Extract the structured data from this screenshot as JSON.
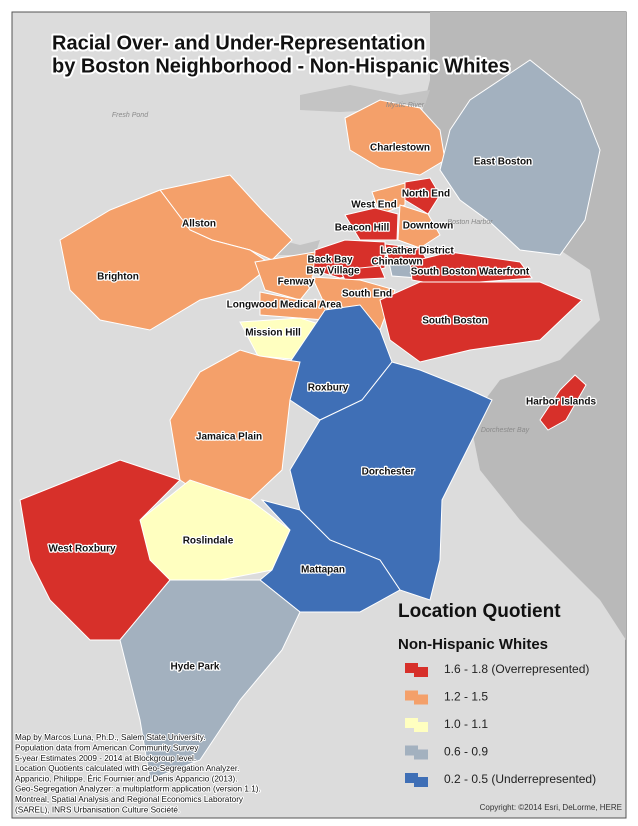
{
  "title": [
    "Racial Over- and Under-Representation",
    "by Boston Neighborhood - Non-Hispanic Whites"
  ],
  "neighborhoods": [
    {
      "name": "Charlestown",
      "color": "#f4a06a"
    },
    {
      "name": "East Boston",
      "color": "#a3b1bf"
    },
    {
      "name": "North End",
      "color": "#d7302a"
    },
    {
      "name": "West End",
      "color": "#f4a06a"
    },
    {
      "name": "Downtown",
      "color": "#f4a06a"
    },
    {
      "name": "Beacon Hill",
      "color": "#d7302a"
    },
    {
      "name": "Back Bay",
      "color": "#d7302a"
    },
    {
      "name": "Bay Village",
      "color": "#d7302a"
    },
    {
      "name": "Leather District",
      "color": "#d7302a"
    },
    {
      "name": "Chinatown",
      "color": "#a3b1bf"
    },
    {
      "name": "South Boston Waterfront",
      "color": "#d7302a"
    },
    {
      "name": "Allston",
      "color": "#f4a06a"
    },
    {
      "name": "Brighton",
      "color": "#f4a06a"
    },
    {
      "name": "Fenway",
      "color": "#f4a06a"
    },
    {
      "name": "Longwood Medical Area",
      "color": "#f4a06a"
    },
    {
      "name": "South End",
      "color": "#f4a06a"
    },
    {
      "name": "South Boston",
      "color": "#d7302a"
    },
    {
      "name": "Mission Hill",
      "color": "#ffffc0"
    },
    {
      "name": "Roxbury",
      "color": "#3f6fb6"
    },
    {
      "name": "Harbor Islands",
      "color": "#d7302a"
    },
    {
      "name": "Jamaica Plain",
      "color": "#f4a06a"
    },
    {
      "name": "Dorchester",
      "color": "#3f6fb6"
    },
    {
      "name": "Roslindale",
      "color": "#ffffc0"
    },
    {
      "name": "West Roxbury",
      "color": "#d7302a"
    },
    {
      "name": "Mattapan",
      "color": "#3f6fb6"
    },
    {
      "name": "Hyde Park",
      "color": "#a3b1bf"
    }
  ],
  "basemap_labels": [
    "Mystic River",
    "Fresh Pond",
    "Boston Harbor",
    "Dorchester Bay"
  ],
  "legend": {
    "title": "Location Quotient",
    "subtitle": "Non-Hispanic Whites",
    "items": [
      {
        "label": "1.6 - 1.8 (Overrepresented)",
        "color": "#d7302a"
      },
      {
        "label": "1.2 - 1.5",
        "color": "#f4a06a"
      },
      {
        "label": "1.0 - 1.1",
        "color": "#ffffc0"
      },
      {
        "label": "0.6 - 0.9",
        "color": "#a3b1bf"
      },
      {
        "label": "0.2 - 0.5 (Underrepresented)",
        "color": "#3f6fb6"
      }
    ]
  },
  "credits": [
    "Map by Marcos Luna, Ph.D., Salem State University.",
    "Population data from American Community Survey",
    "5-year Estimates 2009 - 2014 at Blockgroup level.",
    "Location Quotients calculated with Geo-Segregation Analyzer.",
    "Apparicio, Philippe, Éric Fournier and Denis Apparicio (2013).",
    " Geo-Segregation Analyzer: a multiplatform application (version 1.1).",
    "Montreal, Spatial Analysis and Regional Economics Laboratory",
    "(SAREL), INRS Urbanisation Culture Société."
  ],
  "copyright": "Copyright: ©2014 Esri, DeLorme, HERE"
}
